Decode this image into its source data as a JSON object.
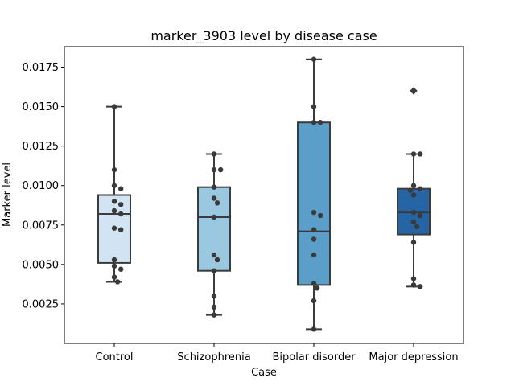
{
  "chart_data": {
    "type": "box",
    "title": "marker_3903 level by disease case",
    "xlabel": "Case",
    "ylabel": "Marker level",
    "categories": [
      "Control",
      "Schizophrenia",
      "Bipolar disorder",
      "Major depression"
    ],
    "colors": [
      "#d2e3f3",
      "#9ac8e0",
      "#5a9ec9",
      "#2565a6"
    ],
    "ylim": [
      0.0,
      0.0188
    ],
    "yticks": [
      0.0025,
      0.005,
      0.0075,
      0.01,
      0.0125,
      0.015,
      0.0175
    ],
    "ytick_labels": [
      "0.0025",
      "0.0050",
      "0.0075",
      "0.0100",
      "0.0125",
      "0.0150",
      "0.0175"
    ],
    "grid": false,
    "boxes": [
      {
        "category": "Control",
        "whisker_low": 0.0039,
        "q1": 0.0051,
        "median": 0.0082,
        "q3": 0.0094,
        "whisker_high": 0.015,
        "outliers": []
      },
      {
        "category": "Schizophrenia",
        "whisker_low": 0.0018,
        "q1": 0.0046,
        "median": 0.008,
        "q3": 0.0099,
        "whisker_high": 0.012,
        "outliers": []
      },
      {
        "category": "Bipolar disorder",
        "whisker_low": 0.0009,
        "q1": 0.0037,
        "median": 0.0071,
        "q3": 0.014,
        "whisker_high": 0.018,
        "outliers": []
      },
      {
        "category": "Major depression",
        "whisker_low": 0.0036,
        "q1": 0.0069,
        "median": 0.0083,
        "q3": 0.0098,
        "whisker_high": 0.012,
        "outliers": [
          0.016
        ]
      }
    ],
    "points": [
      {
        "category": "Control",
        "values": [
          0.015,
          0.011,
          0.01,
          0.0098,
          0.009,
          0.0088,
          0.0084,
          0.0082,
          0.0073,
          0.0072,
          0.0053,
          0.0049,
          0.0047,
          0.0042,
          0.0039
        ]
      },
      {
        "category": "Schizophrenia",
        "values": [
          0.012,
          0.011,
          0.011,
          0.0099,
          0.0092,
          0.0089,
          0.008,
          0.0056,
          0.0053,
          0.0046,
          0.003,
          0.0023,
          0.0018
        ]
      },
      {
        "category": "Bipolar disorder",
        "values": [
          0.018,
          0.015,
          0.014,
          0.014,
          0.0083,
          0.0081,
          0.0072,
          0.0066,
          0.0056,
          0.0038,
          0.0035,
          0.0027,
          0.0009
        ]
      },
      {
        "category": "Major depression",
        "values": [
          0.016,
          0.012,
          0.012,
          0.01,
          0.0098,
          0.0097,
          0.0094,
          0.0083,
          0.0081,
          0.0077,
          0.0074,
          0.0064,
          0.0041,
          0.0037,
          0.0036
        ]
      }
    ]
  }
}
